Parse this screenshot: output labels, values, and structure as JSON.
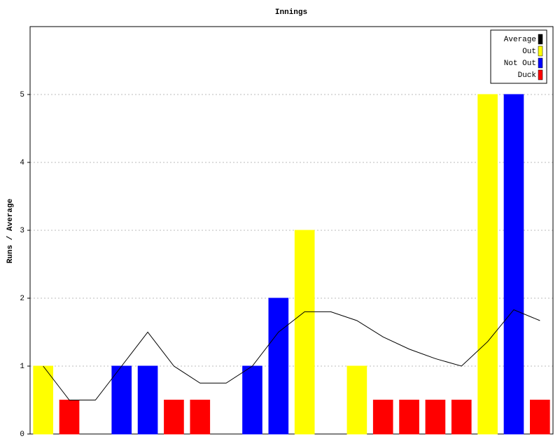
{
  "chart_data": {
    "type": "bar",
    "title": "Innings",
    "y_label": "Runs / Average",
    "ylim": [
      0,
      6
    ],
    "yticks": [
      0,
      1,
      2,
      3,
      4,
      5
    ],
    "grid": true,
    "legend": "top-right",
    "series": [
      {
        "name": "Average",
        "color": "#000000",
        "type": "line",
        "values": [
          1,
          0.5,
          0.5,
          1,
          1.5,
          1,
          0.75,
          0.75,
          1,
          1.5,
          1.8,
          1.8,
          1.67,
          1.43,
          1.25,
          1.11,
          1,
          1.36,
          1.83,
          1.67
        ]
      },
      {
        "name": "Out",
        "color": "#ffff00",
        "values": [
          1,
          null,
          null,
          null,
          null,
          null,
          null,
          null,
          null,
          null,
          3,
          null,
          1,
          null,
          null,
          null,
          null,
          5,
          null,
          null
        ]
      },
      {
        "name": "Not Out",
        "color": "#0000ff",
        "values": [
          null,
          null,
          0,
          1,
          1,
          null,
          null,
          0,
          1,
          2,
          null,
          0,
          null,
          null,
          null,
          null,
          null,
          null,
          5,
          null
        ]
      },
      {
        "name": "Duck",
        "color": "#ff0000",
        "values": [
          null,
          0.5,
          null,
          null,
          null,
          0.5,
          0.5,
          null,
          null,
          null,
          null,
          null,
          null,
          0.5,
          0.5,
          0.5,
          0.5,
          null,
          null,
          0.5
        ]
      }
    ]
  }
}
